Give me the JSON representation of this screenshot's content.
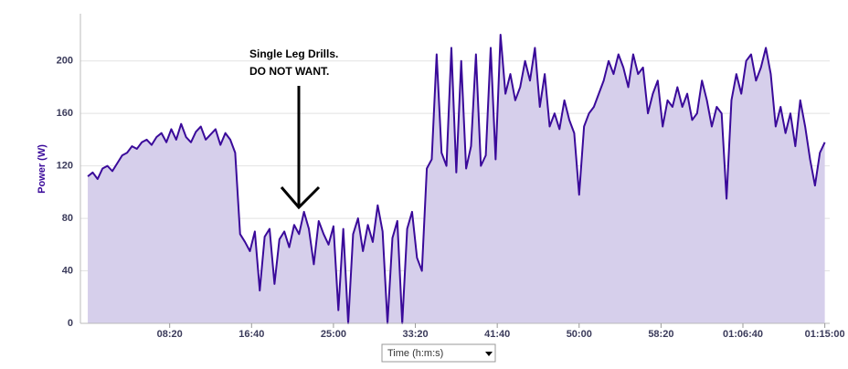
{
  "chart_data": {
    "type": "area-line",
    "y_label": "Power (W)",
    "x_label": "Time (h:m:s)",
    "annotation": [
      "Single Leg Drills.",
      "DO NOT WANT."
    ],
    "color": "#3a0a9a",
    "fill_color": "#d6cfeb",
    "grid": true,
    "xlim": [
      -45,
      4530
    ],
    "ylim": [
      0,
      236
    ],
    "yticks": [
      0,
      40,
      80,
      120,
      160,
      200
    ],
    "xticks": [
      {
        "value": 500,
        "label": "08:20"
      },
      {
        "value": 1000,
        "label": "16:40"
      },
      {
        "value": 1500,
        "label": "25:00"
      },
      {
        "value": 2000,
        "label": "33:20"
      },
      {
        "value": 2500,
        "label": "41:40"
      },
      {
        "value": 3000,
        "label": "50:00"
      },
      {
        "value": 3500,
        "label": "58:20"
      },
      {
        "value": 4000,
        "label": "01:06:40"
      },
      {
        "value": 4500,
        "label": "01:15:00"
      }
    ],
    "x": [
      0,
      30,
      60,
      90,
      120,
      150,
      180,
      210,
      240,
      270,
      300,
      330,
      360,
      390,
      420,
      450,
      480,
      510,
      540,
      570,
      600,
      630,
      660,
      690,
      720,
      750,
      780,
      810,
      840,
      870,
      900,
      930,
      960,
      990,
      1020,
      1050,
      1080,
      1110,
      1140,
      1170,
      1200,
      1230,
      1260,
      1290,
      1320,
      1350,
      1380,
      1410,
      1440,
      1470,
      1500,
      1530,
      1560,
      1590,
      1620,
      1650,
      1680,
      1710,
      1740,
      1770,
      1800,
      1830,
      1860,
      1890,
      1920,
      1950,
      1980,
      2010,
      2040,
      2070,
      2100,
      2130,
      2160,
      2190,
      2220,
      2250,
      2280,
      2310,
      2340,
      2370,
      2400,
      2430,
      2460,
      2490,
      2520,
      2550,
      2580,
      2610,
      2640,
      2670,
      2700,
      2730,
      2760,
      2790,
      2820,
      2850,
      2880,
      2910,
      2940,
      2970,
      3000,
      3030,
      3060,
      3090,
      3120,
      3150,
      3180,
      3210,
      3240,
      3270,
      3300,
      3330,
      3360,
      3390,
      3420,
      3450,
      3480,
      3510,
      3540,
      3570,
      3600,
      3630,
      3660,
      3690,
      3720,
      3750,
      3780,
      3810,
      3840,
      3870,
      3900,
      3930,
      3960,
      3990,
      4020,
      4050,
      4080,
      4110,
      4140,
      4170,
      4200,
      4230,
      4260,
      4290,
      4320,
      4350,
      4380,
      4410,
      4440,
      4470,
      4500
    ],
    "values": [
      112,
      115,
      110,
      118,
      120,
      116,
      122,
      128,
      130,
      135,
      133,
      138,
      140,
      136,
      142,
      145,
      138,
      148,
      140,
      152,
      142,
      138,
      146,
      150,
      140,
      144,
      148,
      136,
      145,
      140,
      130,
      68,
      62,
      55,
      70,
      25,
      66,
      72,
      30,
      64,
      70,
      58,
      75,
      68,
      85,
      72,
      45,
      78,
      68,
      60,
      74,
      10,
      72,
      0,
      68,
      80,
      55,
      75,
      62,
      90,
      70,
      0,
      65,
      78,
      0,
      72,
      85,
      50,
      40,
      118,
      125,
      205,
      130,
      120,
      210,
      115,
      200,
      118,
      135,
      205,
      120,
      128,
      210,
      125,
      220,
      175,
      190,
      170,
      180,
      200,
      185,
      210,
      165,
      190,
      150,
      160,
      148,
      170,
      155,
      145,
      98,
      150,
      160,
      165,
      175,
      185,
      200,
      190,
      205,
      195,
      180,
      205,
      190,
      195,
      160,
      175,
      185,
      150,
      170,
      165,
      180,
      165,
      175,
      155,
      160,
      185,
      170,
      150,
      165,
      160,
      95,
      170,
      190,
      175,
      200,
      205,
      185,
      195,
      210,
      190,
      150,
      165,
      145,
      160,
      135,
      170,
      150,
      125,
      105,
      130,
      138
    ]
  }
}
